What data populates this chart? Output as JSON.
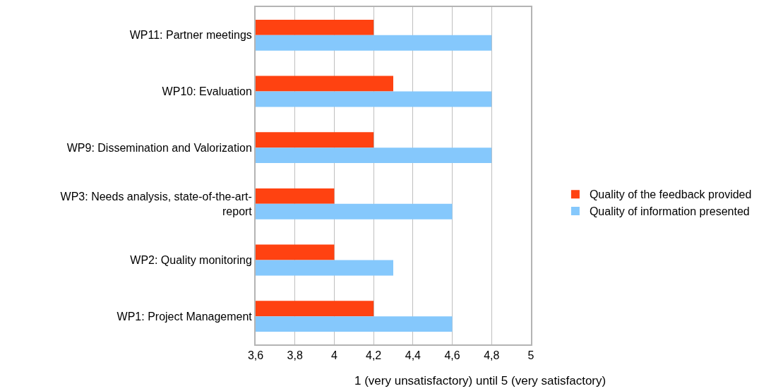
{
  "chart_data": {
    "type": "bar",
    "orientation": "horizontal",
    "xlabel": "1 (very unsatisfactory) until 5 (very satisfactory)",
    "categories": [
      "WP11: Partner meetings",
      "WP10: Evaluation",
      "WP9: Dissemination and Valorization",
      "WP3: Needs analysis, state-of-the-art-report",
      "WP2: Quality monitoring",
      "WP1: Project Management"
    ],
    "series": [
      {
        "name": "Quality of the feedback provided",
        "color": "#ff4211",
        "values": [
          4.2,
          4.3,
          4.2,
          4.0,
          4.0,
          4.2
        ]
      },
      {
        "name": "Quality of information presented",
        "color": "#85c8fc",
        "values": [
          4.8,
          4.8,
          4.8,
          4.6,
          4.3,
          4.6
        ]
      }
    ],
    "xlim": [
      3.6,
      5
    ],
    "xticks": [
      {
        "value": 3.6,
        "label": "3,6"
      },
      {
        "value": 3.8,
        "label": "3,8"
      },
      4,
      {
        "value": 4.2,
        "label": "4,2"
      },
      {
        "value": 4.4,
        "label": "4,4"
      },
      {
        "value": 4.6,
        "label": "4,6"
      },
      {
        "value": 4.8,
        "label": "4,8"
      },
      5
    ],
    "grid": "x",
    "legend": "right"
  }
}
